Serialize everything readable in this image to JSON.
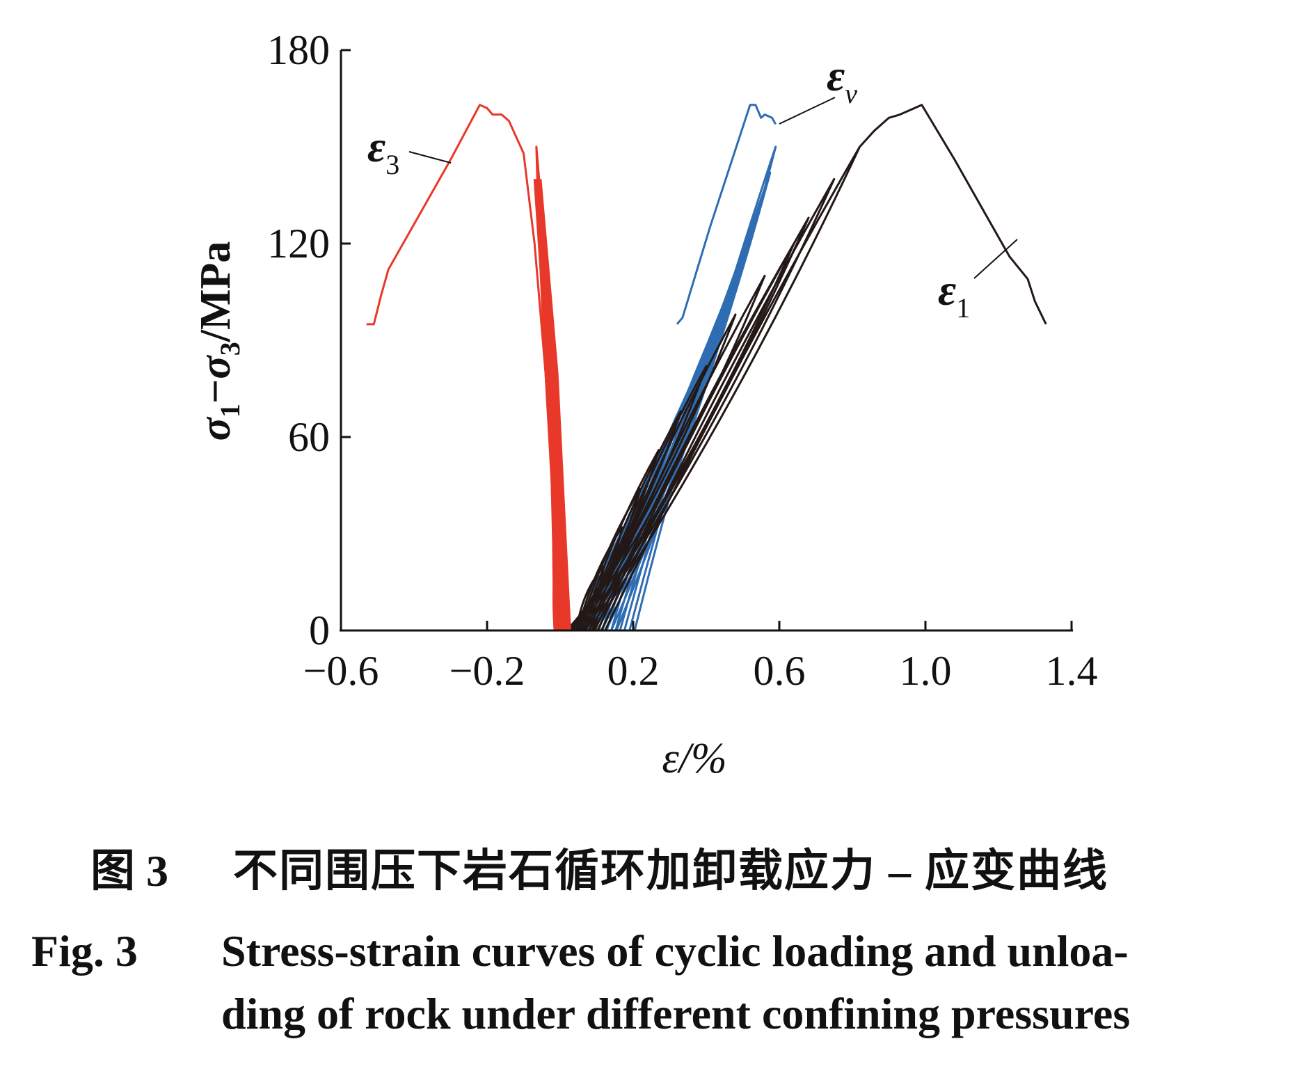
{
  "chart_data": {
    "type": "line",
    "xlabel": "ε/%",
    "ylabel": "σ1− σ3/MPa",
    "ylabel_parts": {
      "sigma1": "σ",
      "sub1": "1",
      "dash": "−",
      "sigma3": "σ",
      "sub3": "3",
      "unit": "/MPa"
    },
    "xlim": [
      -0.6,
      1.4
    ],
    "ylim": [
      0,
      180
    ],
    "x_ticks": [
      -0.6,
      -0.2,
      0.2,
      0.6,
      1.0,
      1.4
    ],
    "x_tick_labels": [
      "−0.6",
      "−0.2",
      "0.2",
      "0.6",
      "1.0",
      "1.4"
    ],
    "y_ticks": [
      0,
      60,
      120,
      180
    ],
    "y_tick_labels": [
      "0",
      "60",
      "120",
      "180"
    ],
    "grid": false,
    "series": [
      {
        "name": "ε3",
        "label": {
          "main": "ε",
          "sub": "3"
        },
        "color": "#e8382a",
        "cycles": [
          {
            "peak_x": -0.065,
            "peak_y": 150
          },
          {
            "peak_x": -0.06,
            "peak_y": 140
          },
          {
            "peak_x": -0.055,
            "peak_y": 128
          },
          {
            "peak_x": -0.05,
            "peak_y": 118
          },
          {
            "peak_x": -0.045,
            "peak_y": 106
          },
          {
            "peak_x": -0.04,
            "peak_y": 94
          },
          {
            "peak_x": -0.035,
            "peak_y": 80
          },
          {
            "peak_x": -0.03,
            "peak_y": 66
          },
          {
            "peak_x": -0.024,
            "peak_y": 52
          },
          {
            "peak_x": -0.018,
            "peak_y": 38
          },
          {
            "peak_x": -0.012,
            "peak_y": 24
          }
        ],
        "envelope": [
          {
            "x": 0.0,
            "y": 0
          },
          {
            "x": -0.02,
            "y": 40
          },
          {
            "x": -0.04,
            "y": 80
          },
          {
            "x": -0.07,
            "y": 120
          },
          {
            "x": -0.1,
            "y": 148
          },
          {
            "x": -0.14,
            "y": 158
          },
          {
            "x": -0.16,
            "y": 160
          },
          {
            "x": -0.185,
            "y": 160
          },
          {
            "x": -0.2,
            "y": 162
          },
          {
            "x": -0.22,
            "y": 163
          },
          {
            "x": -0.3,
            "y": 146
          },
          {
            "x": -0.4,
            "y": 126
          },
          {
            "x": -0.47,
            "y": 112
          },
          {
            "x": -0.49,
            "y": 104
          },
          {
            "x": -0.51,
            "y": 95
          },
          {
            "x": -0.53,
            "y": 95
          }
        ]
      },
      {
        "name": "εv",
        "label": {
          "main": "ε",
          "sub": "v"
        },
        "color": "#2f6db3",
        "cycles": [
          {
            "start_x": 0.01,
            "peak_x": 0.14,
            "peak_y": 22
          },
          {
            "start_x": 0.015,
            "peak_x": 0.175,
            "peak_y": 30
          },
          {
            "start_x": 0.02,
            "peak_x": 0.205,
            "peak_y": 38
          },
          {
            "start_x": 0.028,
            "peak_x": 0.24,
            "peak_y": 46
          },
          {
            "start_x": 0.036,
            "peak_x": 0.275,
            "peak_y": 55
          },
          {
            "start_x": 0.046,
            "peak_x": 0.31,
            "peak_y": 64
          },
          {
            "start_x": 0.056,
            "peak_x": 0.345,
            "peak_y": 73
          },
          {
            "start_x": 0.066,
            "peak_x": 0.38,
            "peak_y": 82
          },
          {
            "start_x": 0.078,
            "peak_x": 0.415,
            "peak_y": 92
          },
          {
            "start_x": 0.09,
            "peak_x": 0.45,
            "peak_y": 102
          },
          {
            "start_x": 0.102,
            "peak_x": 0.485,
            "peak_y": 112
          },
          {
            "start_x": 0.114,
            "peak_x": 0.515,
            "peak_y": 122
          },
          {
            "start_x": 0.126,
            "peak_x": 0.545,
            "peak_y": 132
          },
          {
            "start_x": 0.14,
            "peak_x": 0.575,
            "peak_y": 142
          },
          {
            "start_x": 0.154,
            "peak_x": 0.59,
            "peak_y": 150
          }
        ],
        "envelope": [
          {
            "x": 0.32,
            "y": 95
          },
          {
            "x": 0.335,
            "y": 97
          },
          {
            "x": 0.41,
            "y": 125
          },
          {
            "x": 0.52,
            "y": 163
          },
          {
            "x": 0.535,
            "y": 163
          },
          {
            "x": 0.55,
            "y": 159
          },
          {
            "x": 0.56,
            "y": 160
          },
          {
            "x": 0.58,
            "y": 159
          },
          {
            "x": 0.59,
            "y": 157
          }
        ]
      },
      {
        "name": "ε1",
        "label": {
          "main": "ε",
          "sub": "1"
        },
        "color": "#231815",
        "cycles": [
          {
            "start_x": 0.01,
            "peak_x": 0.12,
            "peak_y": 20
          },
          {
            "start_x": 0.014,
            "peak_x": 0.17,
            "peak_y": 32
          },
          {
            "start_x": 0.018,
            "peak_x": 0.22,
            "peak_y": 44
          },
          {
            "start_x": 0.024,
            "peak_x": 0.27,
            "peak_y": 56
          },
          {
            "start_x": 0.03,
            "peak_x": 0.33,
            "peak_y": 68
          },
          {
            "start_x": 0.036,
            "peak_x": 0.4,
            "peak_y": 82
          },
          {
            "start_x": 0.044,
            "peak_x": 0.48,
            "peak_y": 98
          },
          {
            "start_x": 0.052,
            "peak_x": 0.56,
            "peak_y": 110
          },
          {
            "start_x": 0.06,
            "peak_x": 0.64,
            "peak_y": 120
          },
          {
            "start_x": 0.068,
            "peak_x": 0.68,
            "peak_y": 128
          },
          {
            "start_x": 0.078,
            "peak_x": 0.75,
            "peak_y": 140
          },
          {
            "start_x": 0.088,
            "peak_x": 0.82,
            "peak_y": 150
          }
        ],
        "envelope": [
          {
            "x": 0.82,
            "y": 150
          },
          {
            "x": 0.86,
            "y": 155
          },
          {
            "x": 0.9,
            "y": 159
          },
          {
            "x": 0.93,
            "y": 160
          },
          {
            "x": 0.95,
            "y": 161
          },
          {
            "x": 0.99,
            "y": 163
          },
          {
            "x": 1.08,
            "y": 146
          },
          {
            "x": 1.18,
            "y": 126
          },
          {
            "x": 1.23,
            "y": 116
          },
          {
            "x": 1.28,
            "y": 109
          },
          {
            "x": 1.3,
            "y": 102
          },
          {
            "x": 1.33,
            "y": 95
          }
        ]
      }
    ]
  },
  "caption": {
    "cn_number": "图 3",
    "cn_text": "不同围压下岩石循环加卸载应力 – 应变曲线",
    "en_number": "Fig. 3",
    "en_text_line1": "Stress-strain curves of cyclic loading and unloa-",
    "en_text_line2": "ding of rock under different confining pressures"
  }
}
